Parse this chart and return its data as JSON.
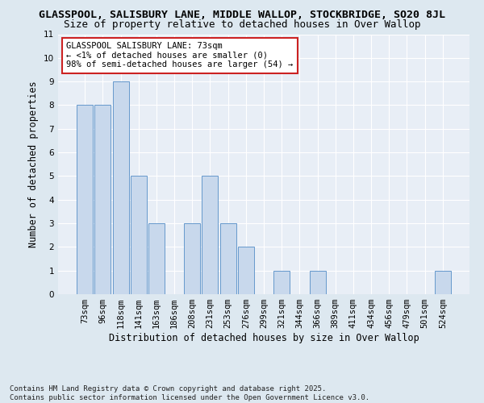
{
  "title_line1": "GLASSPOOL, SALISBURY LANE, MIDDLE WALLOP, STOCKBRIDGE, SO20 8JL",
  "title_line2": "Size of property relative to detached houses in Over Wallop",
  "xlabel": "Distribution of detached houses by size in Over Wallop",
  "ylabel": "Number of detached properties",
  "categories": [
    "73sqm",
    "96sqm",
    "118sqm",
    "141sqm",
    "163sqm",
    "186sqm",
    "208sqm",
    "231sqm",
    "253sqm",
    "276sqm",
    "299sqm",
    "321sqm",
    "344sqm",
    "366sqm",
    "389sqm",
    "411sqm",
    "434sqm",
    "456sqm",
    "479sqm",
    "501sqm",
    "524sqm"
  ],
  "values": [
    8,
    8,
    9,
    5,
    3,
    0,
    3,
    5,
    3,
    2,
    0,
    1,
    0,
    1,
    0,
    0,
    0,
    0,
    0,
    0,
    1
  ],
  "bar_color": "#c8d8ec",
  "bar_edge_color": "#6699cc",
  "annotation_text": "GLASSPOOL SALISBURY LANE: 73sqm\n← <1% of detached houses are smaller (0)\n98% of semi-detached houses are larger (54) →",
  "annotation_box_facecolor": "#ffffff",
  "annotation_box_edgecolor": "#cc2222",
  "ylim": [
    0,
    11
  ],
  "yticks": [
    0,
    1,
    2,
    3,
    4,
    5,
    6,
    7,
    8,
    9,
    10,
    11
  ],
  "footer": "Contains HM Land Registry data © Crown copyright and database right 2025.\nContains public sector information licensed under the Open Government Licence v3.0.",
  "bg_color": "#dde8f0",
  "plot_bg_color": "#e8eef6",
  "grid_color": "#ffffff",
  "title_fontsize": 9.5,
  "subtitle_fontsize": 9,
  "axis_label_fontsize": 8.5,
  "tick_fontsize": 7.5,
  "annotation_fontsize": 7.5,
  "footer_fontsize": 6.5
}
